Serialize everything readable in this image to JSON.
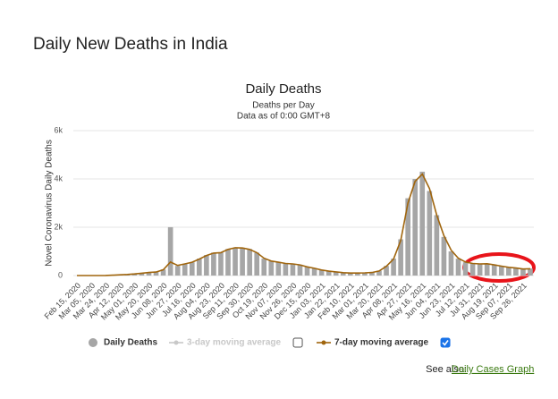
{
  "page": {
    "heading": "Daily New Deaths in India",
    "see_also": "See also:",
    "link": "Daily Cases Graph"
  },
  "chart_data": {
    "type": "bar",
    "title": "Daily Deaths",
    "subtitle": [
      "Deaths per Day",
      "Data as of 0:00 GMT+8"
    ],
    "y_label": "Novel Coronavirus Daily Deaths",
    "categories": [
      "Feb 15, 2020",
      null,
      "Mar 05, 2020",
      null,
      "Mar 24, 2020",
      null,
      "Apr 12, 2020",
      null,
      "May 01, 2020",
      null,
      "May 20, 2020",
      null,
      "Jun 08, 2020",
      null,
      "Jun 27, 2020",
      null,
      "Jul 16, 2020",
      null,
      "Aug 04, 2020",
      null,
      "Aug 23, 2020",
      null,
      "Sep 11, 2020",
      null,
      "Sep 30, 2020",
      null,
      "Oct 19, 2020",
      null,
      "Nov 07, 2020",
      null,
      "Nov 26, 2020",
      null,
      "Dec 15, 2020",
      null,
      "Jan 03, 2021",
      null,
      "Jan 22, 2021",
      null,
      "Feb 10, 2021",
      null,
      "Mar 01, 2021",
      null,
      "Mar 20, 2021",
      null,
      "Apr 08, 2021",
      null,
      "Apr 27, 2021",
      null,
      "May 16, 2021",
      null,
      "Jun 04, 2021",
      null,
      "Jun 23, 2021",
      null,
      "Jul 12, 2021",
      null,
      "Jul 31, 2021",
      null,
      "Aug 19, 2021",
      null,
      "Sep 07, 2021",
      null,
      "Sep 26, 2021",
      null
    ],
    "series": [
      {
        "name": "Daily Deaths",
        "type": "bar",
        "color": "#a6a6a6",
        "visible": true,
        "values": [
          0,
          0,
          0,
          0,
          5,
          20,
          35,
          50,
          70,
          100,
          130,
          150,
          250,
          2003,
          400,
          480,
          550,
          700,
          850,
          950,
          950,
          1100,
          1150,
          1150,
          1100,
          950,
          700,
          600,
          550,
          500,
          490,
          450,
          350,
          300,
          230,
          180,
          150,
          120,
          100,
          110,
          110,
          130,
          200,
          400,
          700,
          1500,
          3200,
          4000,
          4300,
          3500,
          2500,
          1600,
          1000,
          700,
          550,
          500,
          480,
          500,
          450,
          400,
          350,
          320,
          280,
          290
        ]
      },
      {
        "name": "3-day moving average",
        "type": "line",
        "color": "#c8c8c8",
        "visible": false,
        "values": [
          null,
          null,
          null,
          null,
          null,
          null,
          null,
          null,
          null,
          null,
          null,
          null,
          null,
          null,
          null,
          null,
          null,
          null,
          null,
          null,
          null,
          null,
          null,
          null,
          null,
          null,
          null,
          null,
          null,
          null,
          null,
          null,
          null,
          null,
          null,
          null,
          null,
          null,
          null,
          null,
          null,
          null,
          null,
          null,
          null,
          null,
          null,
          null,
          null,
          null,
          null,
          null,
          null,
          null,
          null,
          null,
          null,
          null,
          null,
          null,
          null,
          null,
          null,
          null
        ]
      },
      {
        "name": "7-day moving average",
        "type": "line",
        "color": "#a0650d",
        "visible": true,
        "values": [
          0,
          0,
          0,
          0,
          4,
          15,
          30,
          45,
          65,
          95,
          125,
          145,
          240,
          560,
          420,
          480,
          550,
          680,
          830,
          930,
          950,
          1080,
          1150,
          1140,
          1080,
          950,
          720,
          600,
          550,
          500,
          480,
          440,
          360,
          300,
          230,
          180,
          150,
          120,
          105,
          105,
          110,
          125,
          190,
          380,
          680,
          1450,
          3000,
          3900,
          4200,
          3600,
          2500,
          1650,
          1050,
          720,
          560,
          500,
          480,
          490,
          440,
          390,
          340,
          310,
          270,
          280
        ]
      }
    ],
    "ylim": [
      0,
      6000
    ],
    "yticks": [
      0,
      {
        "value": 2000,
        "label": "2k"
      },
      {
        "value": 4000,
        "label": "4k"
      },
      {
        "value": 6000,
        "label": "6k"
      }
    ],
    "grid": true
  }
}
